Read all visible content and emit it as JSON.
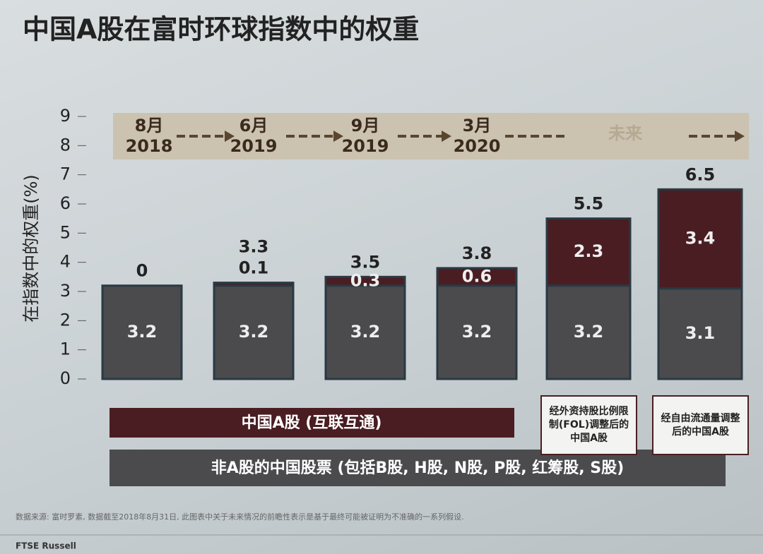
{
  "title": "中国A股在富时环球指数中的权重",
  "chart_data": {
    "type": "stacked_bar",
    "y_label": "在指数中的权重(%)",
    "categories": [
      "8月 2018",
      "6月 2019",
      "9月 2019",
      "3月 2020",
      null,
      null
    ],
    "future_label": "未来",
    "series": [
      {
        "name": "非A股的中国股票 (包括B股, H股, N股, P股, 红筹股, S股)",
        "color": "#4b4b4e",
        "values": [
          3.2,
          3.2,
          3.2,
          3.2,
          3.2,
          3.1
        ]
      },
      {
        "name": "中国A股 (互联互通)",
        "color": "#4a1d22",
        "values": [
          0,
          0.1,
          0.3,
          0.6,
          2.3,
          3.4
        ]
      }
    ],
    "totals": [
      null,
      3.3,
      3.5,
      3.8,
      5.5,
      6.5
    ],
    "annotations": [
      "经外资持股比例限制(FOL)调整后的中国A股",
      "经自由流通量调整后的中国A股"
    ],
    "ylim": [
      0,
      9
    ],
    "yticks": [
      0,
      1,
      2,
      3,
      4,
      5,
      6,
      7,
      8,
      9
    ]
  },
  "source": "数据来源: 富时罗素, 数据截至2018年8月31日, 此图表中关于未来情况的前瞻性表示是基于最终可能被证明为不准确的一系列假设.",
  "footer": "FTSE Russell"
}
